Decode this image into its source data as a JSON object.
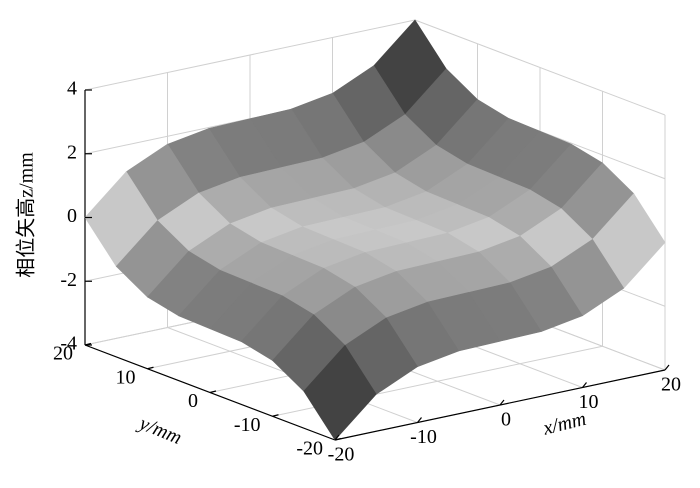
{
  "chart_data": {
    "type": "surface",
    "xlabel": "x/mm",
    "ylabel": "y/mm",
    "zlabel": "相位矢高z/mm",
    "x": [
      -20,
      -15,
      -10,
      -5,
      0,
      5,
      10,
      15,
      20
    ],
    "y": [
      -20,
      -15,
      -10,
      -5,
      0,
      5,
      10,
      15,
      20
    ],
    "z": [
      [
        -4,
        -2.84,
        -2.25,
        -2.03,
        -2,
        -1.97,
        -1.75,
        -1.16,
        0
      ],
      [
        -2.84,
        -1.68,
        -1.09,
        -0.87,
        -0.84,
        -0.81,
        -0.59,
        0,
        1.16
      ],
      [
        -2.25,
        -1.09,
        -0.5,
        -0.28,
        -0.25,
        -0.22,
        0,
        0.59,
        1.75
      ],
      [
        -2.03,
        -0.87,
        -0.28,
        -0.06,
        -0.03,
        0,
        0.22,
        0.81,
        1.97
      ],
      [
        -2,
        -0.84,
        -0.25,
        -0.03,
        0,
        0.03,
        0.25,
        0.84,
        2
      ],
      [
        -1.97,
        -0.81,
        -0.22,
        0,
        0.03,
        0.06,
        0.28,
        0.87,
        2.03
      ],
      [
        -1.75,
        -0.59,
        0,
        0.22,
        0.25,
        0.28,
        0.5,
        1.09,
        2.25
      ],
      [
        -1.16,
        0,
        0.59,
        0.81,
        0.84,
        0.87,
        1.09,
        1.68,
        2.84
      ],
      [
        0,
        1.16,
        1.75,
        1.97,
        2,
        2.03,
        2.25,
        2.84,
        4
      ]
    ],
    "xlim": [
      -20,
      20
    ],
    "ylim": [
      -20,
      20
    ],
    "zlim": [
      -4,
      4
    ],
    "xticks": [
      -20,
      -10,
      0,
      10,
      20
    ],
    "yticks": [
      -20,
      -10,
      0,
      10,
      20
    ],
    "zticks": [
      -4,
      -2,
      0,
      2,
      4
    ],
    "grid": true
  }
}
